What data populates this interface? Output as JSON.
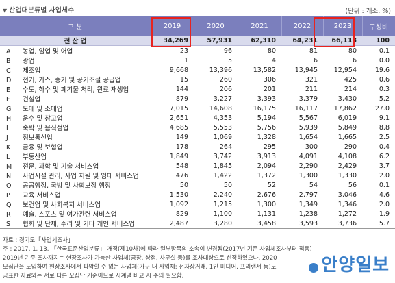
{
  "title": "산업대분류별 사업체수",
  "unit": "(단위 : 개소, %)",
  "header": {
    "category": "구 분",
    "years": [
      "2019",
      "2020",
      "2021",
      "2022",
      "2023"
    ],
    "share": "구성비"
  },
  "rows": [
    {
      "code": "",
      "name": "전 산 업",
      "v": [
        "34,269",
        "57,931",
        "62,310",
        "64,231",
        "66,118"
      ],
      "share": "100"
    },
    {
      "code": "A",
      "name": "농업, 임업 및 어업",
      "v": [
        "23",
        "96",
        "80",
        "81",
        "80"
      ],
      "share": "0.1"
    },
    {
      "code": "B",
      "name": "광업",
      "v": [
        "1",
        "5",
        "4",
        "6",
        "6"
      ],
      "share": "0.0"
    },
    {
      "code": "C",
      "name": "제조업",
      "v": [
        "9,668",
        "13,396",
        "13,582",
        "13,945",
        "12,954"
      ],
      "share": "19.6"
    },
    {
      "code": "D",
      "name": "전기, 가스, 증기 및 공기조절 공급업",
      "v": [
        "15",
        "260",
        "306",
        "321",
        "425"
      ],
      "share": "0.6"
    },
    {
      "code": "E",
      "name": "수도, 하수 및 폐기물 처리, 원료 재생업",
      "v": [
        "144",
        "206",
        "201",
        "211",
        "214"
      ],
      "share": "0.3"
    },
    {
      "code": "F",
      "name": "건설업",
      "v": [
        "879",
        "3,227",
        "3,393",
        "3,379",
        "3,430"
      ],
      "share": "5.2"
    },
    {
      "code": "G",
      "name": "도매 및 소매업",
      "v": [
        "7,015",
        "14,608",
        "16,175",
        "16,117",
        "17,862"
      ],
      "share": "27.0"
    },
    {
      "code": "H",
      "name": "운수 및 창고업",
      "v": [
        "2,651",
        "4,353",
        "5,194",
        "5,567",
        "6,019"
      ],
      "share": "9.1"
    },
    {
      "code": "I",
      "name": "숙박 및 음식점업",
      "v": [
        "4,685",
        "5,553",
        "5,756",
        "5,939",
        "5,849"
      ],
      "share": "8.8"
    },
    {
      "code": "J",
      "name": "정보통신업",
      "v": [
        "149",
        "1,069",
        "1,328",
        "1,654",
        "1,665"
      ],
      "share": "2.5"
    },
    {
      "code": "K",
      "name": "금융 및 보험업",
      "v": [
        "178",
        "264",
        "295",
        "300",
        "290"
      ],
      "share": "0.4"
    },
    {
      "code": "L",
      "name": "부동산업",
      "v": [
        "1,849",
        "3,742",
        "3,913",
        "4,091",
        "4,108"
      ],
      "share": "6.2"
    },
    {
      "code": "M",
      "name": "전문, 과학 및 기술 서비스업",
      "v": [
        "548",
        "1,845",
        "2,094",
        "2,290",
        "2,429"
      ],
      "share": "3.7"
    },
    {
      "code": "N",
      "name": "사업시설 관리, 사업 지원 및 임대 서비스업",
      "v": [
        "476",
        "1,422",
        "1,372",
        "1,300",
        "1,330"
      ],
      "share": "2.0"
    },
    {
      "code": "O",
      "name": "공공행정, 국방 및 사회보장 행정",
      "v": [
        "50",
        "50",
        "52",
        "54",
        "56"
      ],
      "share": "0.1"
    },
    {
      "code": "P",
      "name": "교육 서비스업",
      "v": [
        "1,530",
        "2,240",
        "2,676",
        "2,797",
        "3,046"
      ],
      "share": "4.6"
    },
    {
      "code": "Q",
      "name": "보건업 및 사회복지 서비스업",
      "v": [
        "1,092",
        "1,215",
        "1,300",
        "1,349",
        "1,346"
      ],
      "share": "2.0"
    },
    {
      "code": "R",
      "name": "예술, 스포츠 및 여가관련 서비스업",
      "v": [
        "829",
        "1,100",
        "1,131",
        "1,238",
        "1,272"
      ],
      "share": "1.9"
    },
    {
      "code": "S",
      "name": "협회 및 단체, 수리 및 기타 개인 서비스업",
      "v": [
        "2,487",
        "3,280",
        "3,458",
        "3,593",
        "3,736"
      ],
      "share": "5.7"
    }
  ],
  "notes": [
    "자료 : 경기도「사업체조사」",
    "주    : 2017. 1. 13. 「한국표준산업분류」 개정(제10차)에 따라 일부항목의 소속이 변경됨(2017년 기준 사업체조사부터 적용)",
    "        2019년 기준 조사까지는 현장조사가 가능한 사업체(공장, 상점, 사무실 등)를 조사대상으로 선정하였으나, 2020",
    "        모집단을 도입하여 현장조사에서 파악할 수 없는 사업체(가구 내 사업체: 전자상거래, 1인 미디어, 프리랜서 등)도",
    "        공표한 자료와는 서로 다른 모집단 기준이므로 시계열 비교 시 주의 필요함."
  ],
  "watermark": "안양일보"
}
